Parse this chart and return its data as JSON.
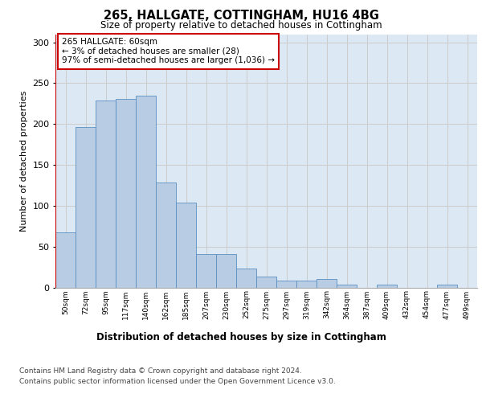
{
  "title": "265, HALLGATE, COTTINGHAM, HU16 4BG",
  "subtitle": "Size of property relative to detached houses in Cottingham",
  "xlabel": "Distribution of detached houses by size in Cottingham",
  "ylabel": "Number of detached properties",
  "categories": [
    "50sqm",
    "72sqm",
    "95sqm",
    "117sqm",
    "140sqm",
    "162sqm",
    "185sqm",
    "207sqm",
    "230sqm",
    "252sqm",
    "275sqm",
    "297sqm",
    "319sqm",
    "342sqm",
    "364sqm",
    "387sqm",
    "409sqm",
    "432sqm",
    "454sqm",
    "477sqm",
    "499sqm"
  ],
  "values": [
    67,
    196,
    229,
    231,
    235,
    128,
    104,
    41,
    41,
    23,
    13,
    8,
    8,
    10,
    3,
    0,
    3,
    0,
    0,
    3,
    0
  ],
  "bar_color": "#b8cce4",
  "bar_edgecolor": "#5a8fc0",
  "highlight_line_color": "#cc0000",
  "annotation_text": "265 HALLGATE: 60sqm\n← 3% of detached houses are smaller (28)\n97% of semi-detached houses are larger (1,036) →",
  "annotation_box_color": "#cc0000",
  "ylim": [
    0,
    310
  ],
  "yticks": [
    0,
    50,
    100,
    150,
    200,
    250,
    300
  ],
  "grid_color": "#cccccc",
  "bg_color": "#dce9f5",
  "footer_line1": "Contains HM Land Registry data © Crown copyright and database right 2024.",
  "footer_line2": "Contains public sector information licensed under the Open Government Licence v3.0."
}
